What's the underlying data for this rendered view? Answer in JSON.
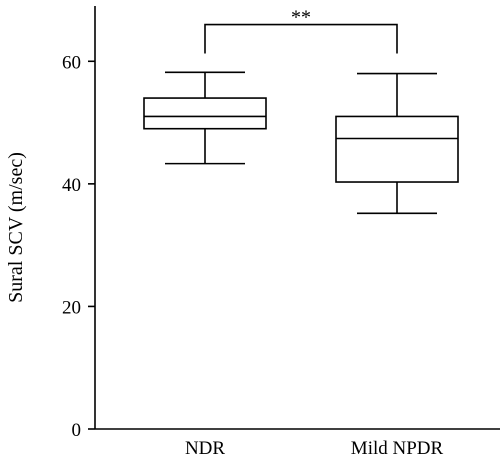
{
  "chart_data": {
    "type": "box",
    "ylabel": "Sural SCV (m/sec)",
    "xlabel": "",
    "ylim": [
      0,
      70
    ],
    "yticks": [
      0,
      20,
      40,
      60
    ],
    "categories": [
      "NDR",
      "Mild NPDR"
    ],
    "boxes": [
      {
        "category": "NDR",
        "min": 43.3,
        "q1": 49.0,
        "median": 51.0,
        "q3": 54.0,
        "max": 58.2
      },
      {
        "category": "Mild NPDR",
        "min": 35.2,
        "q1": 40.3,
        "median": 47.4,
        "q3": 51.0,
        "max": 58.0
      }
    ],
    "annotation": {
      "text": "**",
      "between": [
        "NDR",
        "Mild NPDR"
      ],
      "y": 66.0
    }
  }
}
